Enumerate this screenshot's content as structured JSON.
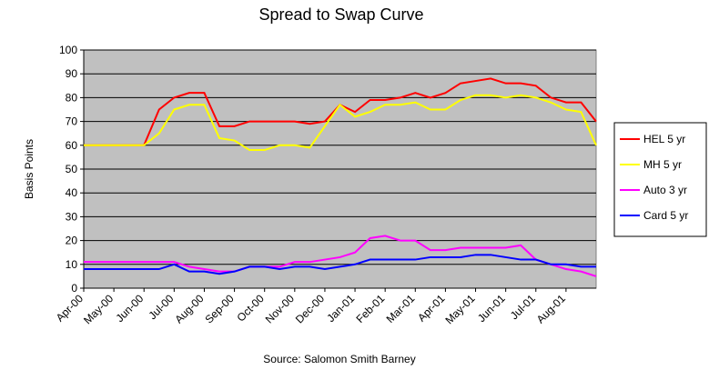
{
  "chart_data": {
    "type": "line",
    "title": "Spread to Swap Curve",
    "y_label": "Basis Points",
    "x_label": "Source: Salomon Smith Barney",
    "categories": [
      "Apr-00",
      null,
      "May-00",
      null,
      "Jun-00",
      null,
      "Jul-00",
      null,
      "Aug-00",
      null,
      "Sep-00",
      null,
      "Oct-00",
      null,
      "Nov-00",
      null,
      "Dec-00",
      null,
      "Jan-01",
      null,
      "Feb-01",
      null,
      "Mar-01",
      null,
      "Apr-01",
      null,
      "May-01",
      null,
      "Jun-01",
      null,
      "Jul-01",
      null,
      "Aug-01",
      null,
      null
    ],
    "series": [
      {
        "name": "HEL 5 yr",
        "color": "#ff0000",
        "values": [
          60,
          60,
          60,
          60,
          60,
          75,
          80,
          82,
          82,
          68,
          68,
          70,
          70,
          70,
          70,
          69,
          70,
          77,
          74,
          79,
          79,
          80,
          82,
          80,
          82,
          86,
          87,
          88,
          86,
          86,
          85,
          80,
          78,
          78,
          70
        ]
      },
      {
        "name": "MH 5 yr",
        "color": "#ffff00",
        "values": [
          60,
          60,
          60,
          60,
          60,
          65,
          75,
          77,
          77,
          63,
          62,
          58,
          58,
          60,
          60,
          59,
          68,
          77,
          72,
          74,
          77,
          77,
          78,
          75,
          75,
          79,
          81,
          81,
          80,
          81,
          80,
          78,
          75,
          74,
          60
        ]
      },
      {
        "name": "Auto 3 yr",
        "color": "#ff00ff",
        "values": [
          11,
          11,
          11,
          11,
          11,
          11,
          11,
          9,
          8,
          7,
          7,
          9,
          9,
          9,
          11,
          11,
          12,
          13,
          15,
          21,
          22,
          20,
          20,
          16,
          16,
          17,
          17,
          17,
          17,
          18,
          12,
          10,
          8,
          7,
          5
        ]
      },
      {
        "name": "Card 5 yr",
        "color": "#0000ff",
        "values": [
          8,
          8,
          8,
          8,
          8,
          8,
          10,
          7,
          7,
          6,
          7,
          9,
          9,
          8,
          9,
          9,
          8,
          9,
          10,
          12,
          12,
          12,
          12,
          13,
          13,
          13,
          14,
          14,
          13,
          12,
          12,
          10,
          10,
          9,
          9
        ]
      }
    ],
    "ylim": [
      0,
      100
    ],
    "yticks": [
      0,
      10,
      20,
      30,
      40,
      50,
      60,
      70,
      80,
      90,
      100
    ],
    "grid": true,
    "legend": "right",
    "plot_color": "#c0c0c0"
  }
}
